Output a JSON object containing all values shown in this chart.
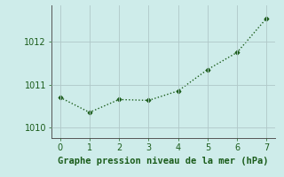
{
  "x": [
    0,
    1,
    2,
    3,
    4,
    5,
    6,
    7
  ],
  "y": [
    1010.7,
    1010.35,
    1010.65,
    1010.63,
    1010.85,
    1011.35,
    1011.75,
    1012.55
  ],
  "line_color": "#1a5c1a",
  "marker": "D",
  "marker_size": 2.5,
  "linewidth": 1.0,
  "linestyle": "dotted",
  "xlabel": "Graphe pression niveau de la mer (hPa)",
  "xlim": [
    -0.3,
    7.3
  ],
  "ylim": [
    1009.75,
    1012.85
  ],
  "yticks": [
    1010,
    1011,
    1012
  ],
  "xticks": [
    0,
    1,
    2,
    3,
    4,
    5,
    6,
    7
  ],
  "background_color": "#ceecea",
  "grid_color": "#b0c8c8",
  "xlabel_fontsize": 7.5,
  "tick_fontsize": 7,
  "xlabel_color": "#1a5c1a",
  "tick_color": "#1a5c1a",
  "spine_color": "#555555"
}
